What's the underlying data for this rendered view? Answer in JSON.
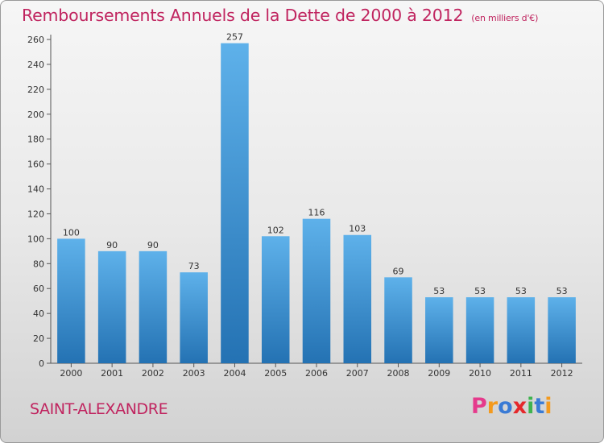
{
  "header": {
    "title": "Remboursements Annuels de la Dette de 2000 à 2012",
    "unit": "(en milliers d'€)"
  },
  "footer": {
    "commune": "SAINT-ALEXANDRE",
    "logo_text": "Proxiti"
  },
  "colors": {
    "title": "#c0245f",
    "bar_top": "#5eb1ea",
    "bar_bottom": "#2472b3",
    "logo": [
      "#e53a8c",
      "#f39a1e",
      "#3a7bd5",
      "#e5282b",
      "#3fb34f",
      "#3a7bd5",
      "#f39a1e"
    ]
  },
  "chart_data": {
    "type": "bar",
    "title": "Remboursements Annuels de la Dette de 2000 à 2012",
    "xlabel": "",
    "ylabel": "",
    "categories": [
      "2000",
      "2001",
      "2002",
      "2003",
      "2004",
      "2005",
      "2006",
      "2007",
      "2008",
      "2009",
      "2010",
      "2011",
      "2012"
    ],
    "values": [
      100,
      90,
      90,
      73,
      257,
      102,
      116,
      103,
      69,
      53,
      53,
      53,
      53
    ],
    "ylim": [
      0,
      260
    ],
    "yticks": [
      0,
      20,
      40,
      60,
      80,
      100,
      120,
      140,
      160,
      180,
      200,
      220,
      240,
      260
    ],
    "grid": false,
    "legend": "none"
  }
}
